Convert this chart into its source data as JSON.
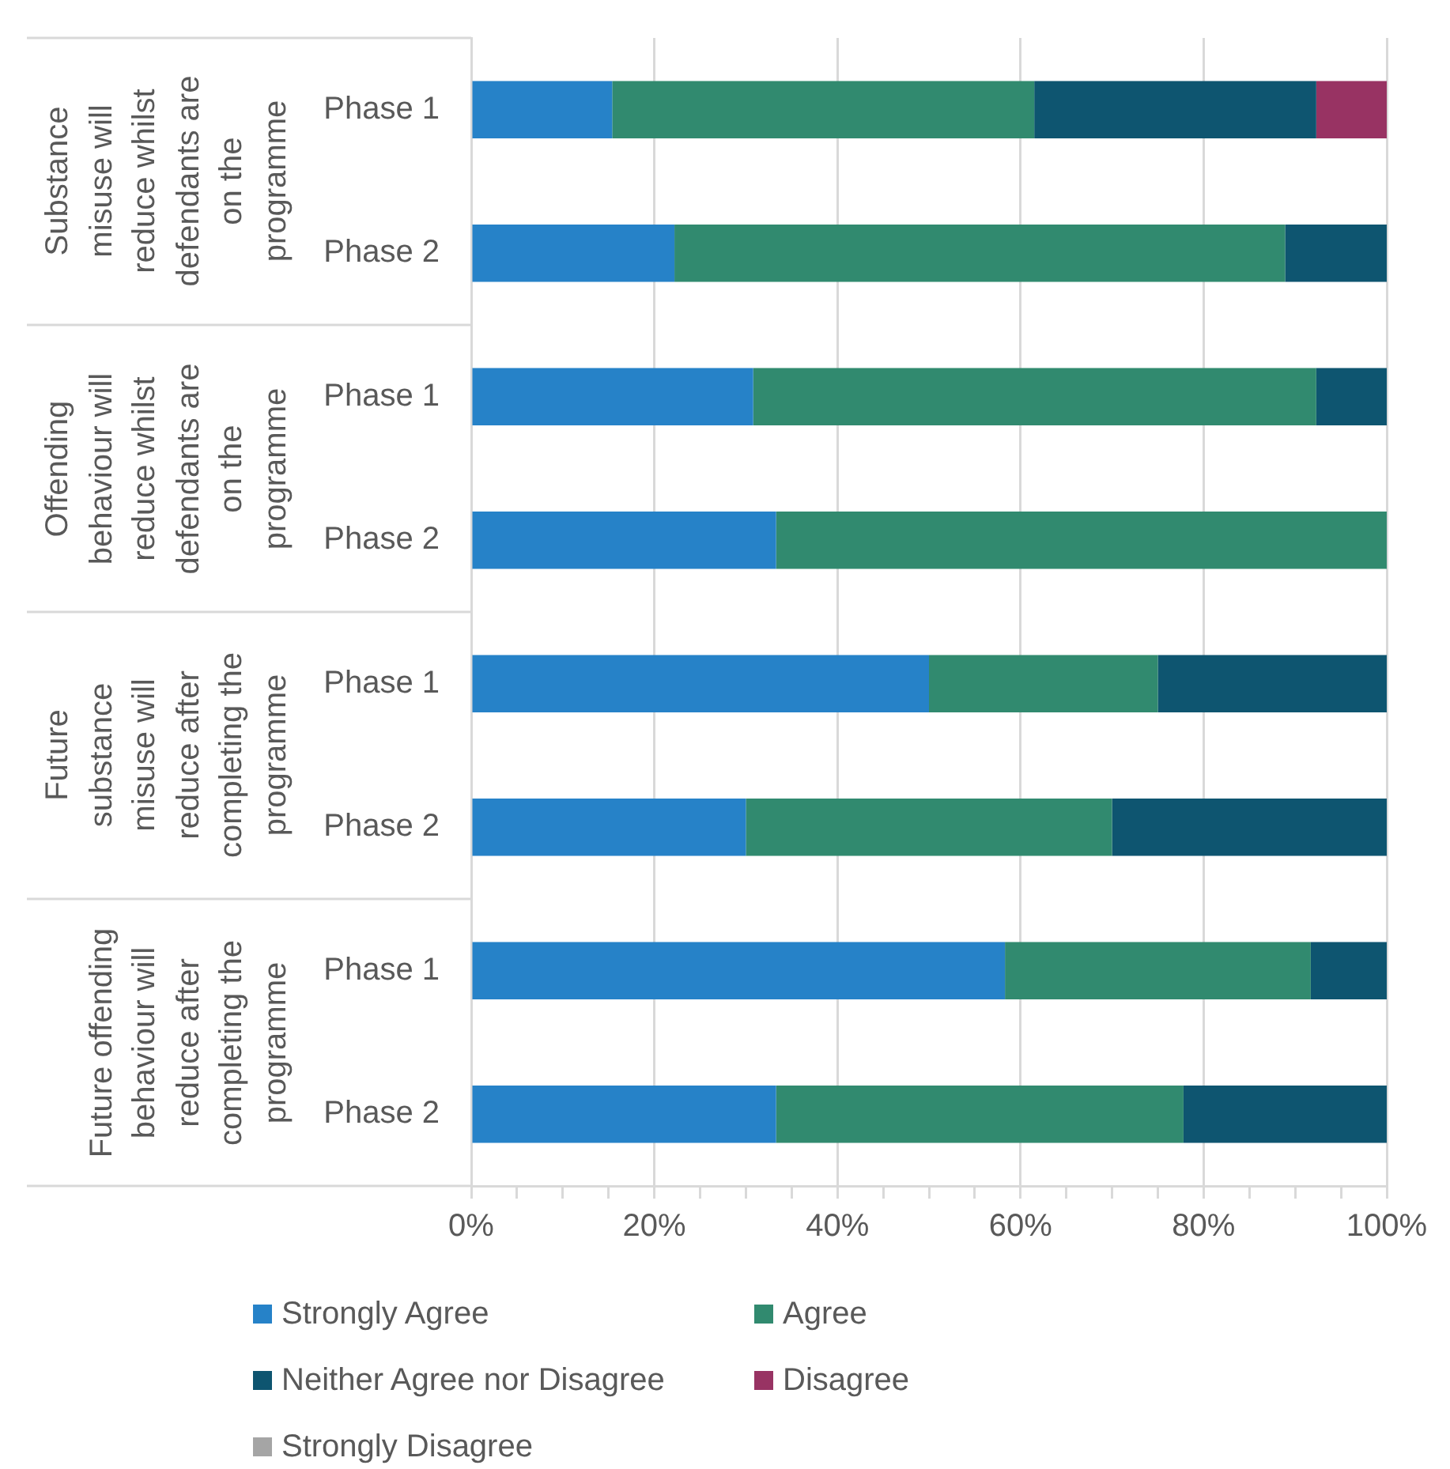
{
  "chart_data": {
    "type": "bar",
    "orientation": "horizontal",
    "stacked": true,
    "categories": [
      "Phase 1",
      "Phase 2",
      "Phase 1",
      "Phase 2",
      "Phase 1",
      "Phase 2",
      "Phase 1",
      "Phase 2"
    ],
    "series": [
      {
        "name": "Strongly Agree",
        "color": "#2682c8",
        "values": [
          15.4,
          22.2,
          30.8,
          33.3,
          50,
          30,
          58.3,
          33.3
        ]
      },
      {
        "name": "Agree",
        "color": "#318a6f",
        "values": [
          46.1,
          66.7,
          61.5,
          66.7,
          25,
          40,
          33.4,
          44.5
        ]
      },
      {
        "name": "Neither Agree nor Disagree",
        "color": "#0e5570",
        "values": [
          30.8,
          11.1,
          7.7,
          0,
          25,
          30,
          8.3,
          22.2
        ]
      },
      {
        "name": "Disagree",
        "color": "#983363",
        "values": [
          7.7,
          0,
          0,
          0,
          0,
          0,
          0,
          0
        ]
      },
      {
        "name": "Strongly Disagree",
        "color": "#a5a5a5",
        "values": [
          0,
          0,
          0,
          0,
          0,
          0,
          0,
          0
        ]
      }
    ],
    "xlim": [
      0,
      100
    ],
    "xticks": [
      {
        "value": 0,
        "label": "0%"
      },
      {
        "value": 5,
        "label": null
      },
      {
        "value": 10,
        "label": null
      },
      {
        "value": 15,
        "label": null
      },
      {
        "value": 20,
        "label": "20%"
      },
      {
        "value": 25,
        "label": null
      },
      {
        "value": 30,
        "label": null
      },
      {
        "value": 35,
        "label": null
      },
      {
        "value": 40,
        "label": "40%"
      },
      {
        "value": 45,
        "label": null
      },
      {
        "value": 50,
        "label": null
      },
      {
        "value": 55,
        "label": null
      },
      {
        "value": 60,
        "label": "60%"
      },
      {
        "value": 65,
        "label": null
      },
      {
        "value": 70,
        "label": null
      },
      {
        "value": 75,
        "label": null
      },
      {
        "value": 80,
        "label": "80%"
      },
      {
        "value": 85,
        "label": null
      },
      {
        "value": 90,
        "label": null
      },
      {
        "value": 95,
        "label": null
      },
      {
        "value": 100,
        "label": "100%"
      }
    ],
    "grid": "x",
    "legend": "bottom",
    "annotations": [
      "Substance misuse will reduce whilst defendants are on the programme",
      "Offending behaviour will reduce whilst defendants are on the programme",
      "Future substance misuse will reduce after completing the programme",
      "Future offending behaviour will reduce after completing the programme"
    ]
  }
}
